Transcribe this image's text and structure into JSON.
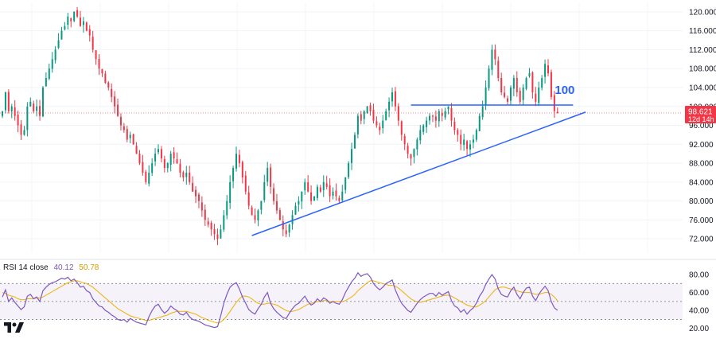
{
  "chart_data": [
    {
      "type": "candlestick",
      "title": "",
      "ylim": [
        69,
        122
      ],
      "y_ticks": [
        120,
        116,
        112,
        108,
        104,
        100,
        96,
        92,
        88,
        84,
        80,
        76,
        72
      ],
      "y_tick_labels": [
        "120.000",
        "116.000",
        "112.000",
        "108.000",
        "104.000",
        "100.000",
        "96.000",
        "92.000",
        "88.000",
        "84.000",
        "80.000",
        "76.000",
        "72.000"
      ],
      "colors": {
        "up": "#089981",
        "down": "#f23645",
        "trendline": "#2962ff"
      },
      "closes": [
        99,
        103,
        99,
        100,
        98,
        96,
        94,
        95,
        100,
        101,
        99,
        100,
        98,
        104,
        106,
        108,
        110,
        112,
        114,
        116,
        117,
        119,
        118,
        120,
        119,
        117,
        118,
        116,
        115,
        112,
        110,
        108,
        107,
        105,
        104,
        102,
        100,
        98,
        96,
        95,
        93,
        94,
        92,
        90,
        88,
        86,
        84,
        86,
        88,
        90,
        91,
        89,
        87,
        88,
        90,
        89,
        88,
        86,
        85,
        86,
        84,
        82,
        81,
        80,
        78,
        76,
        75,
        74,
        73,
        72,
        74,
        77,
        80,
        84,
        87,
        90,
        88,
        85,
        82,
        79,
        77,
        76,
        78,
        80,
        84,
        87,
        83,
        80,
        78,
        76,
        74,
        73,
        75,
        77,
        79,
        80,
        82,
        84,
        82,
        80,
        81,
        83,
        82,
        84,
        83,
        81,
        82,
        81,
        80,
        82,
        85,
        88,
        91,
        94,
        98,
        97,
        99,
        100,
        99,
        97,
        96,
        95,
        97,
        99,
        101,
        103,
        100,
        97,
        94,
        92,
        90,
        89,
        91,
        93,
        95,
        96,
        97,
        98,
        98,
        97,
        99,
        98,
        99,
        100,
        97,
        95,
        94,
        92,
        93,
        91,
        92,
        93,
        95,
        98,
        100,
        104,
        108,
        112,
        110,
        106,
        103,
        102,
        101,
        104,
        106,
        103,
        101,
        104,
        106,
        107,
        103,
        101,
        104,
        106,
        109,
        107,
        102,
        99,
        98.621
      ],
      "last_price_label": "98.621",
      "countdown_label": "12d 14h",
      "last_price": 98.621,
      "annotations": [
        {
          "text": "100",
          "type": "horizontal_level",
          "price": 100.3,
          "x_range_index": [
            131,
            183
          ]
        },
        {
          "text": "",
          "type": "ascending_trendline",
          "from": {
            "index": 80,
            "price": 72.7
          },
          "to": {
            "index": 187,
            "price": 98.8
          }
        }
      ]
    },
    {
      "type": "line",
      "title": "RSI 14 close",
      "ylim": [
        18,
        88
      ],
      "y_ticks": [
        80,
        60,
        40,
        20
      ],
      "y_tick_labels": [
        "80.00",
        "60.00",
        "40.00",
        "20.00"
      ],
      "band": [
        30,
        70
      ],
      "series": [
        {
          "name": "RSI",
          "color": "#7e57c2",
          "last_value": 40.12,
          "values": [
            55,
            63,
            50,
            54,
            49,
            45,
            41,
            44,
            56,
            58,
            53,
            55,
            50,
            62,
            66,
            69,
            71,
            72,
            74,
            76,
            75,
            77,
            73,
            75,
            71,
            66,
            67,
            62,
            60,
            53,
            49,
            45,
            44,
            40,
            38,
            35,
            33,
            30,
            29,
            30,
            27,
            31,
            29,
            27,
            26,
            25,
            24,
            33,
            40,
            45,
            47,
            41,
            37,
            40,
            45,
            42,
            40,
            36,
            35,
            38,
            33,
            30,
            29,
            28,
            26,
            24,
            23,
            22,
            21,
            22,
            34,
            48,
            58,
            66,
            69,
            71,
            64,
            55,
            48,
            41,
            38,
            36,
            42,
            47,
            55,
            60,
            48,
            42,
            38,
            35,
            32,
            31,
            37,
            42,
            46,
            48,
            52,
            56,
            50,
            46,
            48,
            53,
            50,
            54,
            52,
            48,
            50,
            48,
            47,
            52,
            60,
            66,
            72,
            76,
            82,
            78,
            80,
            81,
            77,
            70,
            66,
            63,
            66,
            70,
            72,
            74,
            63,
            55,
            48,
            44,
            40,
            38,
            43,
            48,
            52,
            55,
            57,
            59,
            59,
            56,
            60,
            57,
            59,
            61,
            51,
            45,
            43,
            38,
            41,
            36,
            40,
            43,
            48,
            56,
            61,
            69,
            75,
            80,
            75,
            64,
            58,
            56,
            55,
            62,
            66,
            58,
            53,
            60,
            65,
            66,
            56,
            51,
            58,
            63,
            67,
            62,
            50,
            43,
            40.12
          ]
        },
        {
          "name": "MA",
          "color": "#f0b000",
          "last_value": 50.78,
          "values": [
            60,
            59,
            57,
            56,
            55,
            53,
            52,
            52,
            53,
            53,
            53,
            54,
            54,
            55,
            57,
            59,
            61,
            63,
            65,
            67,
            69,
            71,
            72,
            73,
            73,
            72,
            71,
            70,
            68,
            66,
            63,
            60,
            57,
            54,
            51,
            48,
            45,
            42,
            40,
            38,
            36,
            34,
            33,
            32,
            31,
            30,
            29,
            29,
            30,
            31,
            32,
            33,
            34,
            35,
            37,
            38,
            39,
            39,
            39,
            39,
            38,
            37,
            36,
            34,
            32,
            31,
            29,
            28,
            27,
            26,
            27,
            30,
            34,
            39,
            44,
            49,
            53,
            56,
            56,
            55,
            53,
            50,
            48,
            47,
            47,
            48,
            48,
            47,
            46,
            44,
            42,
            40,
            39,
            39,
            40,
            41,
            43,
            45,
            47,
            48,
            49,
            50,
            50,
            51,
            51,
            50,
            50,
            50,
            50,
            50,
            51,
            53,
            55,
            58,
            62,
            65,
            68,
            71,
            73,
            73,
            72,
            71,
            70,
            69,
            68,
            68,
            67,
            65,
            62,
            59,
            56,
            53,
            51,
            50,
            49,
            50,
            51,
            52,
            53,
            54,
            55,
            56,
            57,
            57,
            56,
            54,
            52,
            50,
            48,
            46,
            45,
            44,
            44,
            46,
            48,
            51,
            55,
            59,
            63,
            65,
            66,
            66,
            65,
            64,
            63,
            62,
            61,
            60,
            60,
            60,
            59,
            58,
            58,
            59,
            60,
            60,
            58,
            55,
            50.78
          ]
        }
      ]
    }
  ],
  "rsi_legend": {
    "label": "RSI 14 close",
    "rsi_value": "40.12",
    "ma_value": "50.78"
  },
  "branding": {
    "logo": "TV"
  }
}
